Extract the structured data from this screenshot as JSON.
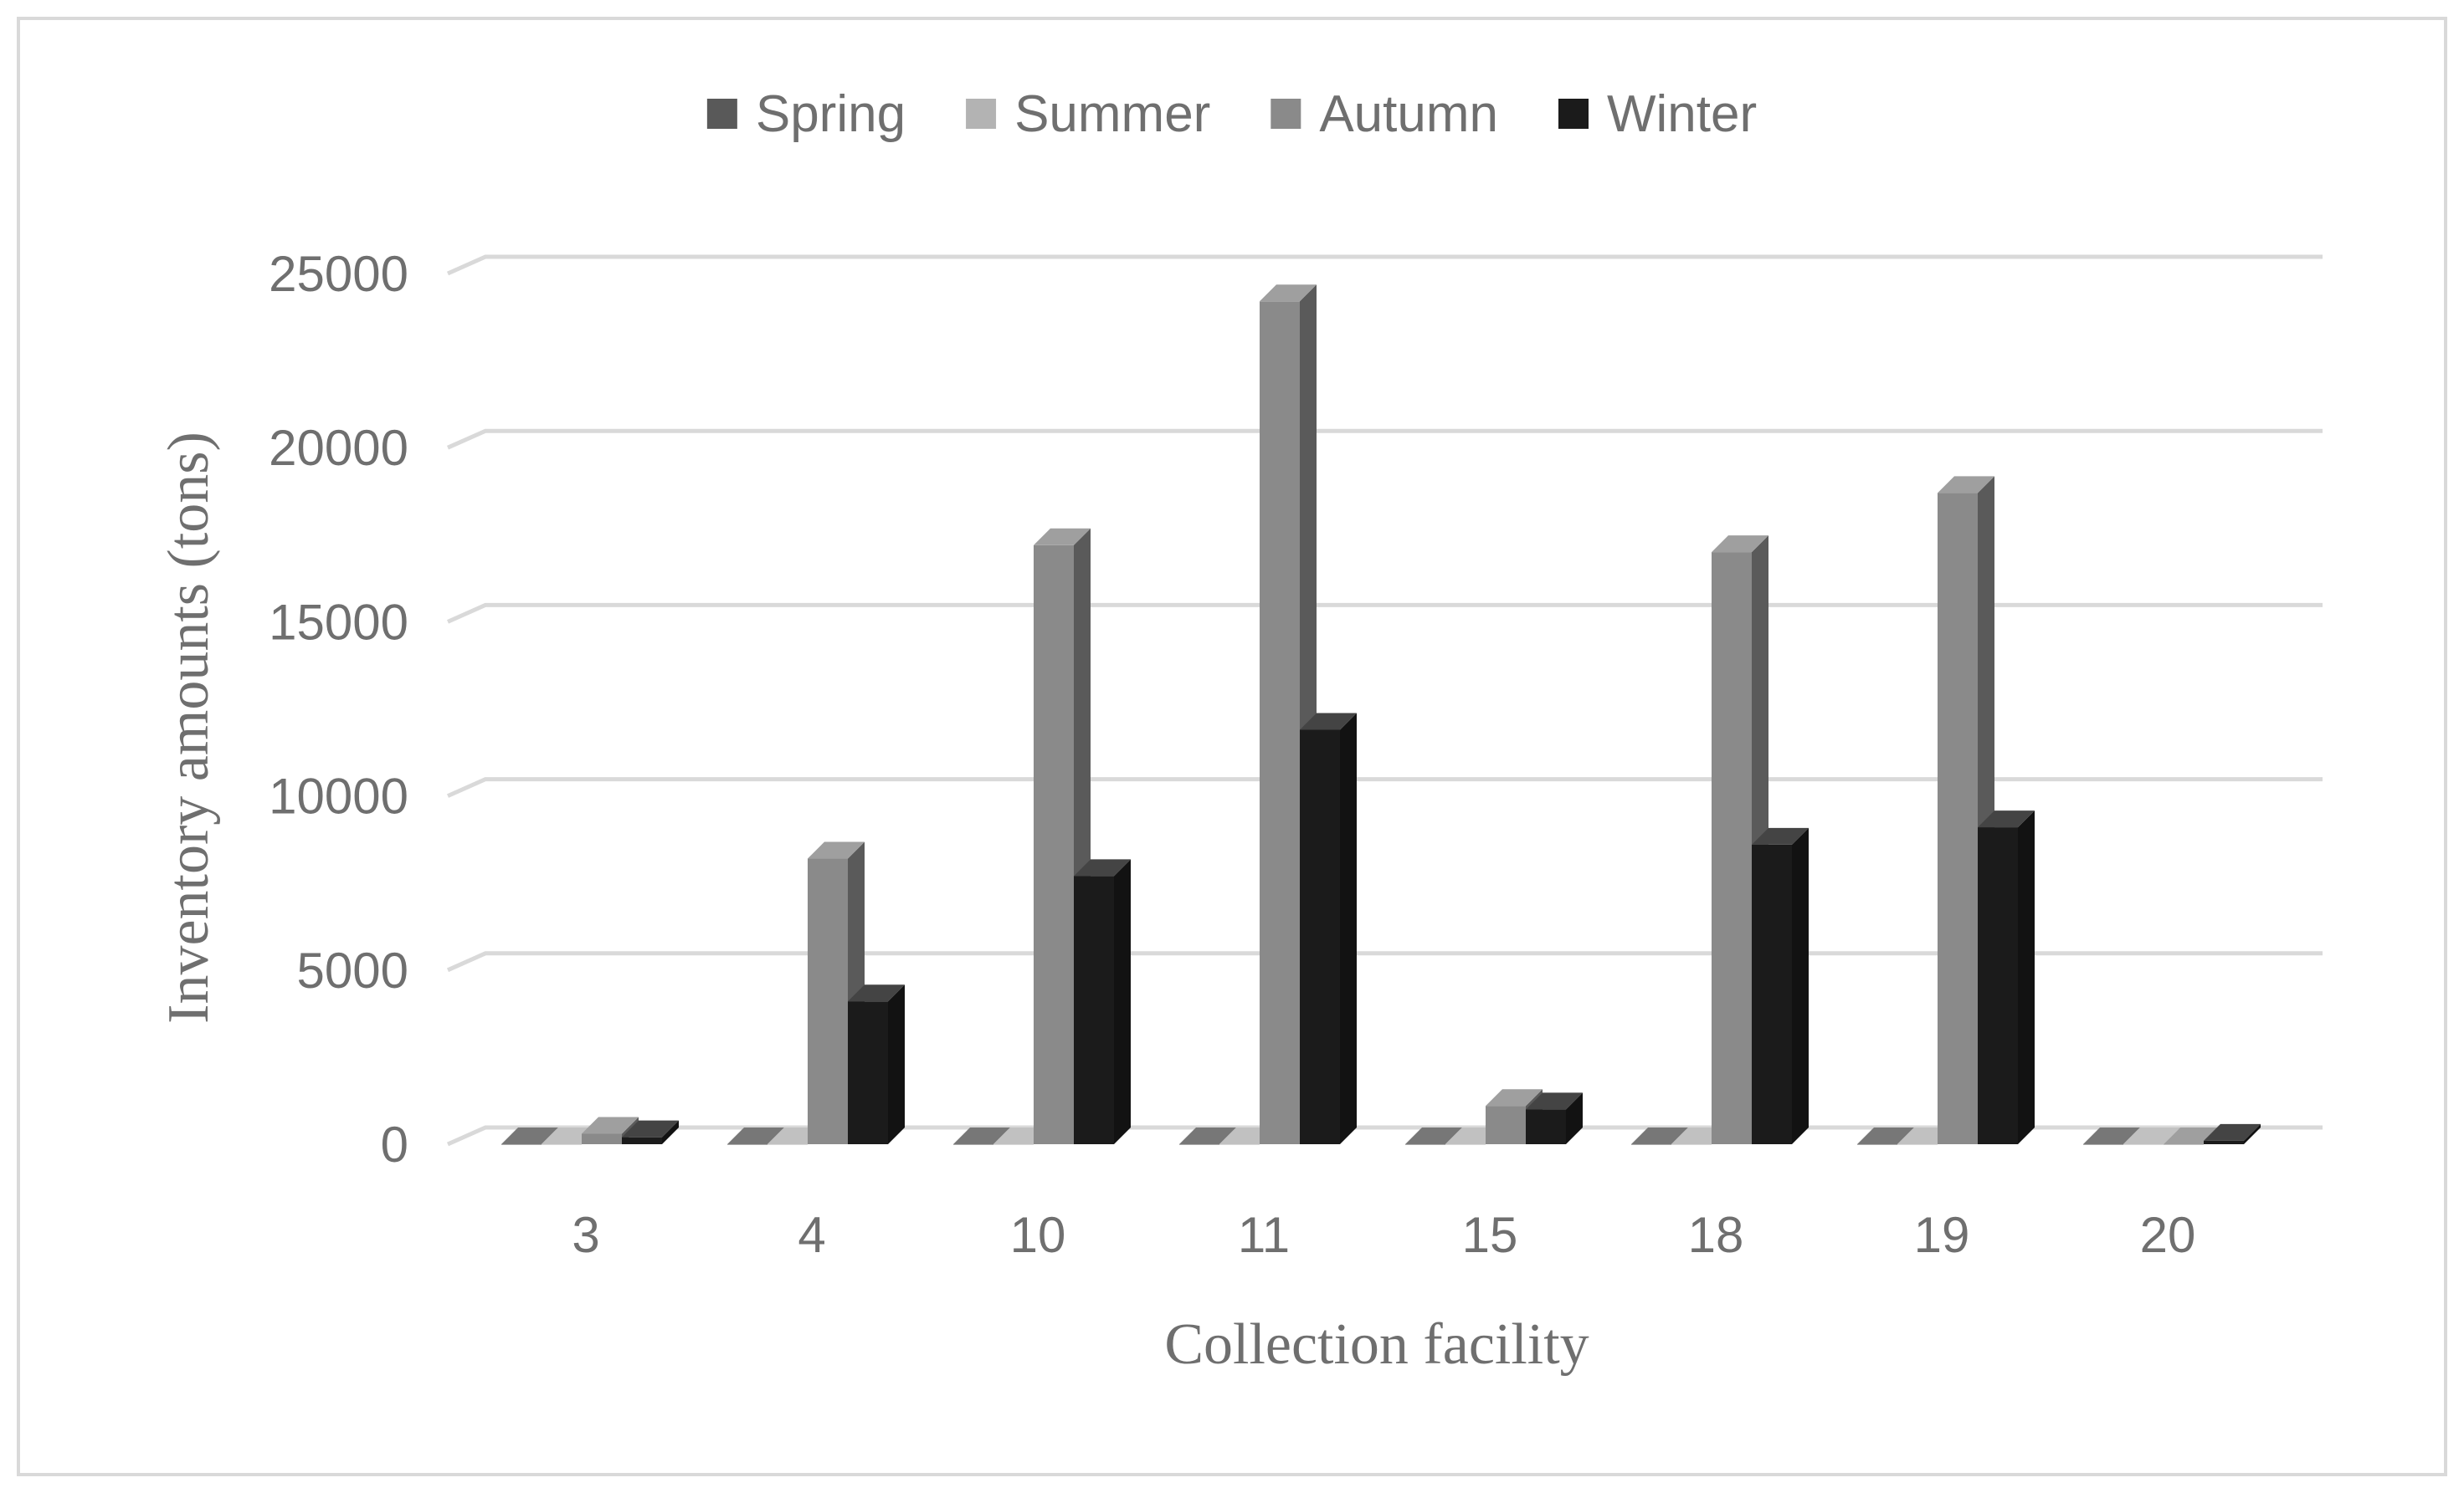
{
  "chart_data": {
    "type": "bar",
    "style": "3d-clustered-column",
    "title": "",
    "xlabel": "Collection facility",
    "ylabel": "Inventory amounts (tons)",
    "categories": [
      "3",
      "4",
      "10",
      "11",
      "15",
      "18",
      "19",
      "20"
    ],
    "series": [
      {
        "name": "Spring",
        "color": "#595959",
        "values": [
          0,
          0,
          0,
          0,
          0,
          0,
          0,
          0
        ]
      },
      {
        "name": "Summer",
        "color": "#b3b3b3",
        "values": [
          0,
          0,
          0,
          0,
          0,
          0,
          0,
          0
        ]
      },
      {
        "name": "Autumn",
        "color": "#8a8a8a",
        "values": [
          300,
          8200,
          17200,
          24200,
          1100,
          17000,
          18700,
          0
        ]
      },
      {
        "name": "Winter",
        "color": "#1b1b1b",
        "values": [
          200,
          4100,
          7700,
          11900,
          1000,
          8600,
          9100,
          100
        ]
      }
    ],
    "ylim": [
      0,
      25000
    ],
    "yticks": [
      "0",
      "5000",
      "10000",
      "15000",
      "20000",
      "25000"
    ],
    "grid": true,
    "legend_position": "top-center"
  }
}
